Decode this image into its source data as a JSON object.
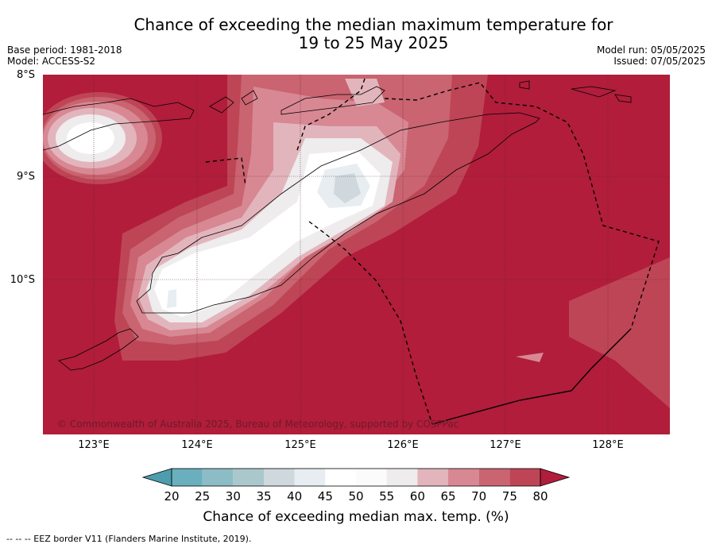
{
  "title_line1": "Chance of exceeding the median maximum temperature for",
  "title_line2": "19 to 25 May 2025",
  "meta": {
    "base_period": "Base period: 1981-2018",
    "model": "Model: ACCESS-S2",
    "model_run": "Model run: 05/05/2025",
    "issued": "Issued: 07/05/2025"
  },
  "axes": {
    "lat_labels": [
      "8°S",
      "9°S",
      "10°S"
    ],
    "lon_labels": [
      "123°E",
      "124°E",
      "125°E",
      "126°E",
      "127°E",
      "128°E"
    ]
  },
  "copyright": "© Commonwealth of Australia 2025, Bureau of Meteorology, supported by COSPPac",
  "colorbar": {
    "ticks": [
      "20",
      "25",
      "30",
      "35",
      "40",
      "45",
      "50",
      "55",
      "60",
      "65",
      "70",
      "75",
      "80"
    ],
    "colors": [
      "#4e9dae",
      "#6aafbe",
      "#8cbcc6",
      "#aac8cc",
      "#cfd8dc",
      "#e7edf0",
      "#ffffff",
      "#fbfbfb",
      "#eeeced",
      "#e2b5bd",
      "#d88893",
      "#c96470",
      "#be4555",
      "#b11d3b"
    ],
    "label": "Chance of exceeding median max. temp. (%)"
  },
  "footer": "--  --  -- EEZ border V11 (Flanders Marine Institute, 2019)."
}
